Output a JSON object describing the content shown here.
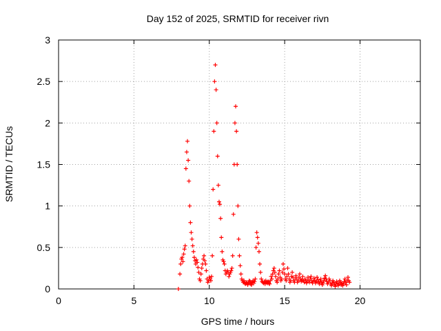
{
  "chart_data": {
    "type": "scatter",
    "title": "Day 152 of 2025, SRMTID for receiver rivn",
    "xlabel": "GPS time / hours",
    "ylabel": "SRMTID / TECUs",
    "xlim": [
      0,
      24
    ],
    "ylim": [
      0,
      3
    ],
    "xticks": [
      0,
      5,
      10,
      15,
      20
    ],
    "yticks": [
      0,
      0.5,
      1,
      1.5,
      2,
      2.5,
      3
    ],
    "xtick_labels": [
      "0",
      "5",
      "10",
      "15",
      "20"
    ],
    "ytick_labels": [
      "0",
      "0.5",
      "1",
      "1.5",
      "2",
      "2.5",
      "3"
    ],
    "grid": true,
    "marker": "plus",
    "color": "#ff0000",
    "series": [
      {
        "points": [
          [
            7.95,
            0.0
          ],
          [
            8.05,
            0.18
          ],
          [
            8.1,
            0.3
          ],
          [
            8.15,
            0.36
          ],
          [
            8.2,
            0.38
          ],
          [
            8.25,
            0.33
          ],
          [
            8.3,
            0.42
          ],
          [
            8.35,
            0.48
          ],
          [
            8.4,
            0.52
          ],
          [
            8.45,
            1.45
          ],
          [
            8.5,
            1.65
          ],
          [
            8.55,
            1.78
          ],
          [
            8.6,
            1.55
          ],
          [
            8.65,
            1.3
          ],
          [
            8.7,
            1.0
          ],
          [
            8.75,
            0.8
          ],
          [
            8.8,
            0.68
          ],
          [
            8.85,
            0.6
          ],
          [
            8.9,
            0.52
          ],
          [
            8.95,
            0.45
          ],
          [
            9.0,
            0.38
          ],
          [
            9.05,
            0.34
          ],
          [
            9.1,
            0.3
          ],
          [
            9.15,
            0.35
          ],
          [
            9.2,
            0.32
          ],
          [
            9.25,
            0.26
          ],
          [
            9.3,
            0.2
          ],
          [
            9.35,
            0.12
          ],
          [
            9.4,
            0.1
          ],
          [
            9.45,
            0.18
          ],
          [
            9.5,
            0.25
          ],
          [
            9.55,
            0.3
          ],
          [
            9.6,
            0.36
          ],
          [
            9.65,
            0.4
          ],
          [
            9.7,
            0.34
          ],
          [
            9.75,
            0.3
          ],
          [
            9.8,
            0.22
          ],
          [
            9.85,
            0.12
          ],
          [
            9.9,
            0.08
          ],
          [
            9.95,
            0.1
          ],
          [
            10.0,
            0.14
          ],
          [
            10.05,
            0.12
          ],
          [
            10.1,
            0.1
          ],
          [
            10.15,
            0.15
          ],
          [
            10.2,
            0.4
          ],
          [
            10.25,
            1.2
          ],
          [
            10.3,
            1.9
          ],
          [
            10.35,
            2.5
          ],
          [
            10.4,
            2.7
          ],
          [
            10.45,
            2.4
          ],
          [
            10.5,
            2.0
          ],
          [
            10.55,
            1.6
          ],
          [
            10.6,
            1.25
          ],
          [
            10.65,
            1.05
          ],
          [
            10.7,
            1.02
          ],
          [
            10.75,
            0.85
          ],
          [
            10.8,
            0.62
          ],
          [
            10.85,
            0.45
          ],
          [
            10.9,
            0.35
          ],
          [
            10.95,
            0.33
          ],
          [
            11.0,
            0.3
          ],
          [
            11.05,
            0.22
          ],
          [
            11.1,
            0.18
          ],
          [
            11.15,
            0.2
          ],
          [
            11.2,
            0.22
          ],
          [
            11.25,
            0.2
          ],
          [
            11.3,
            0.15
          ],
          [
            11.35,
            0.18
          ],
          [
            11.4,
            0.2
          ],
          [
            11.45,
            0.22
          ],
          [
            11.5,
            0.25
          ],
          [
            11.55,
            0.4
          ],
          [
            11.6,
            0.9
          ],
          [
            11.65,
            1.5
          ],
          [
            11.7,
            2.0
          ],
          [
            11.75,
            2.2
          ],
          [
            11.8,
            1.9
          ],
          [
            11.85,
            1.5
          ],
          [
            11.9,
            1.0
          ],
          [
            11.95,
            0.6
          ],
          [
            12.0,
            0.4
          ],
          [
            12.05,
            0.28
          ],
          [
            12.1,
            0.18
          ],
          [
            12.15,
            0.12
          ],
          [
            12.2,
            0.1
          ],
          [
            12.25,
            0.08
          ],
          [
            12.3,
            0.1
          ],
          [
            12.35,
            0.07
          ],
          [
            12.4,
            0.06
          ],
          [
            12.45,
            0.08
          ],
          [
            12.5,
            0.07
          ],
          [
            12.55,
            0.05
          ],
          [
            12.6,
            0.07
          ],
          [
            12.65,
            0.1
          ],
          [
            12.7,
            0.09
          ],
          [
            12.75,
            0.06
          ],
          [
            12.8,
            0.05
          ],
          [
            12.85,
            0.08
          ],
          [
            12.9,
            0.1
          ],
          [
            12.95,
            0.07
          ],
          [
            13.0,
            0.09
          ],
          [
            13.05,
            0.12
          ],
          [
            13.1,
            0.5
          ],
          [
            13.15,
            0.68
          ],
          [
            13.2,
            0.62
          ],
          [
            13.25,
            0.55
          ],
          [
            13.3,
            0.45
          ],
          [
            13.35,
            0.3
          ],
          [
            13.4,
            0.2
          ],
          [
            13.45,
            0.12
          ],
          [
            13.5,
            0.09
          ],
          [
            13.55,
            0.08
          ],
          [
            13.6,
            0.07
          ],
          [
            13.65,
            0.09
          ],
          [
            13.7,
            0.06
          ],
          [
            13.75,
            0.1
          ],
          [
            13.8,
            0.08
          ],
          [
            13.85,
            0.07
          ],
          [
            13.9,
            0.09
          ],
          [
            13.95,
            0.07
          ],
          [
            14.0,
            0.06
          ],
          [
            14.05,
            0.1
          ],
          [
            14.1,
            0.15
          ],
          [
            14.15,
            0.12
          ],
          [
            14.2,
            0.18
          ],
          [
            14.25,
            0.22
          ],
          [
            14.3,
            0.25
          ],
          [
            14.35,
            0.2
          ],
          [
            14.4,
            0.15
          ],
          [
            14.45,
            0.1
          ],
          [
            14.5,
            0.08
          ],
          [
            14.55,
            0.12
          ],
          [
            14.6,
            0.18
          ],
          [
            14.65,
            0.22
          ],
          [
            14.7,
            0.14
          ],
          [
            14.75,
            0.1
          ],
          [
            14.8,
            0.12
          ],
          [
            14.85,
            0.2
          ],
          [
            14.9,
            0.3
          ],
          [
            14.95,
            0.24
          ],
          [
            15.0,
            0.18
          ],
          [
            15.05,
            0.12
          ],
          [
            15.1,
            0.1
          ],
          [
            15.15,
            0.15
          ],
          [
            15.2,
            0.25
          ],
          [
            15.25,
            0.18
          ],
          [
            15.3,
            0.12
          ],
          [
            15.35,
            0.08
          ],
          [
            15.4,
            0.1
          ],
          [
            15.45,
            0.15
          ],
          [
            15.5,
            0.2
          ],
          [
            15.55,
            0.14
          ],
          [
            15.6,
            0.1
          ],
          [
            15.65,
            0.08
          ],
          [
            15.7,
            0.12
          ],
          [
            15.75,
            0.16
          ],
          [
            15.8,
            0.12
          ],
          [
            15.85,
            0.08
          ],
          [
            15.9,
            0.1
          ],
          [
            15.95,
            0.14
          ],
          [
            16.0,
            0.18
          ],
          [
            16.05,
            0.12
          ],
          [
            16.1,
            0.09
          ],
          [
            16.15,
            0.11
          ],
          [
            16.2,
            0.15
          ],
          [
            16.25,
            0.1
          ],
          [
            16.3,
            0.08
          ],
          [
            16.35,
            0.12
          ],
          [
            16.4,
            0.1
          ],
          [
            16.45,
            0.07
          ],
          [
            16.5,
            0.1
          ],
          [
            16.55,
            0.14
          ],
          [
            16.6,
            0.1
          ],
          [
            16.65,
            0.08
          ],
          [
            16.7,
            0.12
          ],
          [
            16.75,
            0.15
          ],
          [
            16.8,
            0.1
          ],
          [
            16.85,
            0.07
          ],
          [
            16.9,
            0.09
          ],
          [
            16.95,
            0.13
          ],
          [
            17.0,
            0.1
          ],
          [
            17.05,
            0.07
          ],
          [
            17.1,
            0.09
          ],
          [
            17.15,
            0.14
          ],
          [
            17.2,
            0.11
          ],
          [
            17.25,
            0.08
          ],
          [
            17.3,
            0.06
          ],
          [
            17.35,
            0.09
          ],
          [
            17.4,
            0.12
          ],
          [
            17.45,
            0.08
          ],
          [
            17.5,
            0.05
          ],
          [
            17.55,
            0.07
          ],
          [
            17.6,
            0.1
          ],
          [
            17.65,
            0.13
          ],
          [
            17.7,
            0.16
          ],
          [
            17.75,
            0.12
          ],
          [
            17.8,
            0.09
          ],
          [
            17.85,
            0.06
          ],
          [
            17.9,
            0.08
          ],
          [
            17.95,
            0.12
          ],
          [
            18.0,
            0.1
          ],
          [
            18.05,
            0.06
          ],
          [
            18.1,
            0.04
          ],
          [
            18.15,
            0.07
          ],
          [
            18.2,
            0.1
          ],
          [
            18.25,
            0.08
          ],
          [
            18.3,
            0.05
          ],
          [
            18.35,
            0.03
          ],
          [
            18.4,
            0.06
          ],
          [
            18.45,
            0.09
          ],
          [
            18.5,
            0.07
          ],
          [
            18.55,
            0.04
          ],
          [
            18.6,
            0.06
          ],
          [
            18.65,
            0.1
          ],
          [
            18.7,
            0.08
          ],
          [
            18.75,
            0.05
          ],
          [
            18.8,
            0.07
          ],
          [
            18.85,
            0.04
          ],
          [
            18.9,
            0.06
          ],
          [
            18.95,
            0.09
          ],
          [
            19.0,
            0.12
          ],
          [
            19.05,
            0.08
          ],
          [
            19.1,
            0.05
          ],
          [
            19.15,
            0.1
          ],
          [
            19.2,
            0.14
          ],
          [
            19.25,
            0.1
          ],
          [
            19.3,
            0.08
          ]
        ]
      }
    ]
  }
}
